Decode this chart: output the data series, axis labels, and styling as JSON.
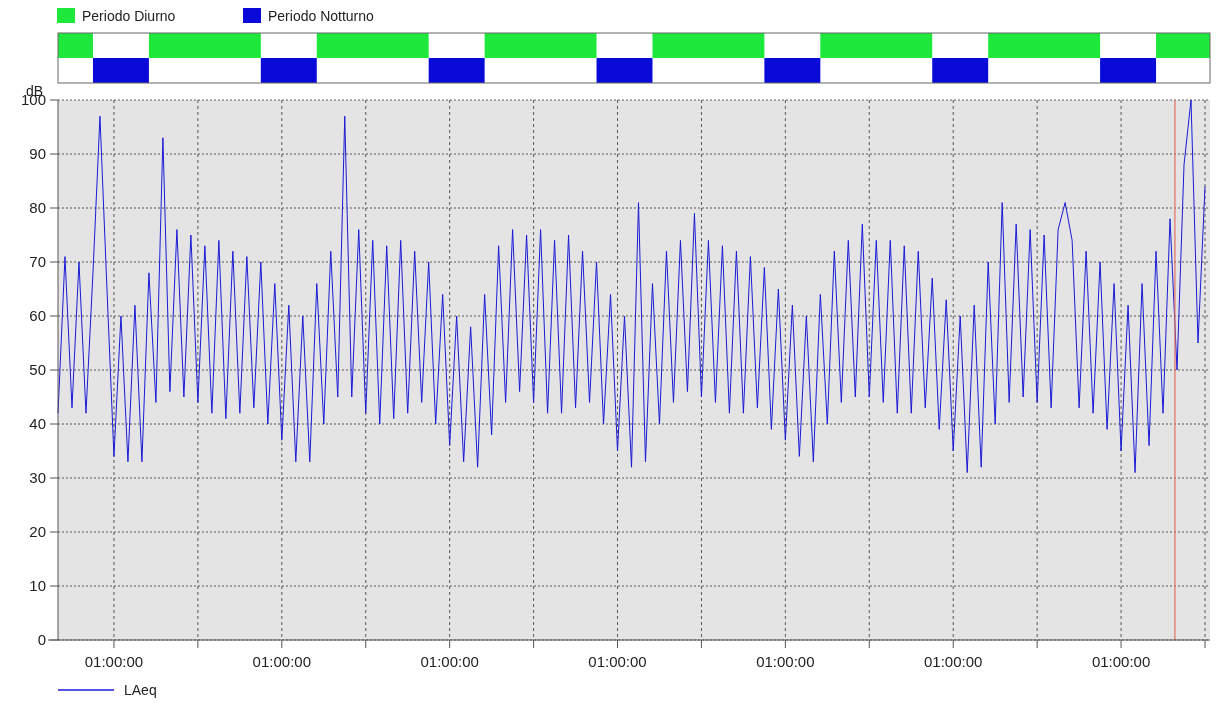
{
  "chart_data": {
    "type": "line",
    "ylabel": "dB",
    "annotations": [
      "Periodo Diurno",
      "Periodo Notturno"
    ],
    "categories": [
      null,
      null,
      null,
      null,
      null,
      null,
      null,
      null,
      "01:00:00",
      null,
      null,
      null,
      null,
      null,
      null,
      null,
      null,
      null,
      null,
      null,
      null,
      null,
      null,
      null,
      null,
      null,
      null,
      null,
      null,
      null,
      null,
      null,
      "01:00:00",
      null,
      null,
      null,
      null,
      null,
      null,
      null,
      null,
      null,
      null,
      null,
      null,
      null,
      null,
      null,
      null,
      null,
      null,
      null,
      null,
      null,
      null,
      null,
      "01:00:00",
      null,
      null,
      null,
      null,
      null,
      null,
      null,
      null,
      null,
      null,
      null,
      null,
      null,
      null,
      null,
      null,
      null,
      null,
      null,
      null,
      null,
      null,
      null,
      "01:00:00",
      null,
      null,
      null,
      null,
      null,
      null,
      null,
      null,
      null,
      null,
      null,
      null,
      null,
      null,
      null,
      null,
      null,
      null,
      null,
      null,
      null,
      null,
      null,
      "01:00:00",
      null,
      null,
      null,
      null,
      null,
      null,
      null,
      null,
      null,
      null,
      null,
      null,
      null,
      null,
      null,
      null,
      null,
      null,
      null,
      null,
      null,
      null,
      null,
      "01:00:00",
      null,
      null,
      null,
      null,
      null,
      null,
      null,
      null,
      null,
      null,
      null,
      null,
      null,
      null,
      null,
      null,
      null,
      null,
      null,
      null,
      null,
      null,
      null,
      "01:00:00",
      null,
      null,
      null,
      null,
      null,
      null,
      null,
      null,
      null,
      null,
      null,
      null
    ],
    "ylim": [
      0,
      100
    ],
    "yticks": [
      0,
      10,
      20,
      30,
      40,
      50,
      60,
      70,
      80,
      90,
      100
    ],
    "grid": true,
    "legend": "bottom left",
    "line_style": "solid",
    "series": [
      {
        "name": "LAeq",
        "color": "#1a1ad6",
        "values": [
          42,
          71,
          43,
          70,
          42,
          68,
          97,
          65,
          34,
          60,
          33,
          62,
          33,
          68,
          44,
          93,
          46,
          76,
          45,
          75,
          44,
          73,
          42,
          74,
          41,
          72,
          42,
          71,
          43,
          70,
          40,
          66,
          37,
          62,
          33,
          60,
          33,
          66,
          40,
          72,
          45,
          97,
          45,
          76,
          42,
          74,
          40,
          73,
          41,
          74,
          42,
          72,
          44,
          70,
          40,
          64,
          36,
          60,
          33,
          58,
          32,
          64,
          38,
          73,
          44,
          76,
          46,
          75,
          44,
          76,
          42,
          74,
          42,
          75,
          43,
          72,
          44,
          70,
          40,
          64,
          35,
          60,
          32,
          81,
          33,
          66,
          40,
          72,
          44,
          74,
          46,
          79,
          45,
          74,
          44,
          73,
          42,
          72,
          42,
          71,
          43,
          69,
          39,
          65,
          37,
          62,
          34,
          60,
          33,
          64,
          40,
          72,
          44,
          74,
          45,
          77,
          45,
          74,
          44,
          74,
          42,
          73,
          42,
          72,
          43,
          67,
          39,
          63,
          35,
          60,
          31,
          62,
          32,
          70,
          40,
          81,
          44,
          77,
          45,
          76,
          44,
          75,
          43,
          76,
          81,
          74,
          43,
          72,
          42,
          70,
          39,
          66,
          35,
          62,
          31,
          66,
          36,
          72,
          42,
          78,
          50,
          88,
          100,
          55,
          84
        ]
      }
    ]
  }
}
